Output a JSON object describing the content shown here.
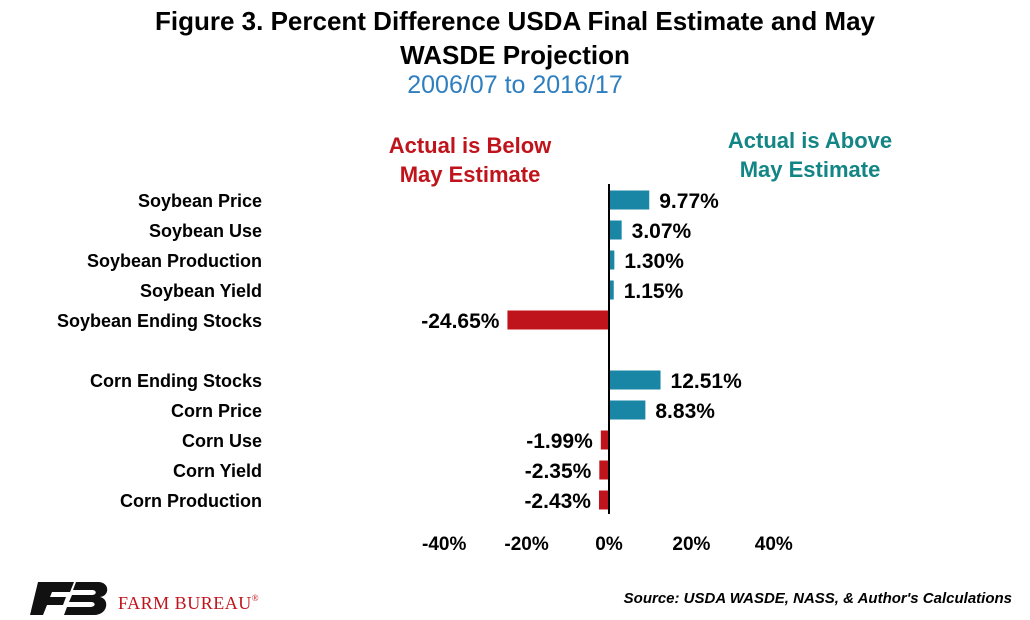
{
  "colors": {
    "positive": "#1a86a6",
    "negative": "#c0141c",
    "above_text": "#138585",
    "subtitle": "#2f7fc0",
    "logo_red": "#c0141c"
  },
  "header": {
    "title_line1": "Figure 3. Percent Difference USDA Final Estimate and May",
    "title_line2": "WASDE Projection",
    "subtitle": "2006/07 to 2016/17"
  },
  "annotations": {
    "below_line1": "Actual is Below",
    "below_line2": "May Estimate",
    "above_line1": "Actual is Above",
    "above_line2": "May Estimate"
  },
  "chart_data": {
    "type": "bar",
    "orientation": "horizontal",
    "title": "Figure 3. Percent Difference USDA Final Estimate and May WASDE Projection",
    "subtitle": "2006/07 to 2016/17",
    "categories": [
      "Soybean Price",
      "Soybean Use",
      "Soybean Production",
      "Soybean Yield",
      "Soybean Ending Stocks",
      "",
      "Corn Ending Stocks",
      "Corn Price",
      "Corn Use",
      "Corn Yield",
      "Corn Production"
    ],
    "values": [
      9.77,
      3.07,
      1.3,
      1.15,
      -24.65,
      null,
      12.51,
      8.83,
      -1.99,
      -2.35,
      -2.43
    ],
    "data_labels": [
      "9.77%",
      "3.07%",
      "1.30%",
      "1.15%",
      "-24.65%",
      "",
      "12.51%",
      "8.83%",
      "-1.99%",
      "-2.35%",
      "-2.43%"
    ],
    "xlim": [
      -40,
      40
    ],
    "xticks": [
      -40,
      -20,
      0,
      20,
      40
    ],
    "xtick_labels": [
      "-40%",
      "-20%",
      "0%",
      "20%",
      "40%"
    ],
    "grid": false,
    "legend": "none"
  },
  "footer": {
    "source": "Source: USDA WASDE, NASS, & Author's Calculations",
    "logo_text": "FARM BUREAU",
    "logo_mark": "®"
  }
}
